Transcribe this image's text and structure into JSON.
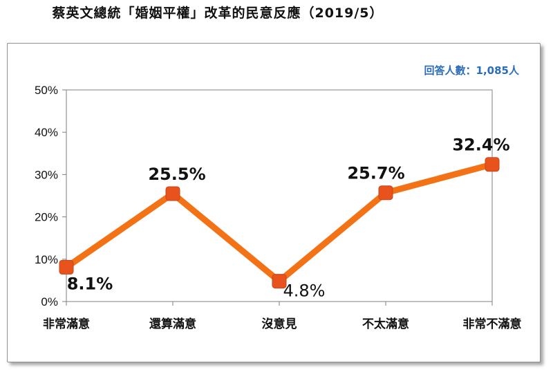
{
  "title": "蔡英文總統「婚姻平權」改革的民意反應（2019/5）",
  "sample_note": "回答人數：1,085人",
  "colors": {
    "line": "#f47216",
    "marker": "#e8521c",
    "grid": "#bfbfbf",
    "axis": "#7f7f7f"
  },
  "chart_data": {
    "type": "line",
    "title": "蔡英文總統「婚姻平權」改革的民意反應（2019/5）",
    "xlabel": "",
    "ylabel": "",
    "categories": [
      "非常滿意",
      "還算滿意",
      "沒意見",
      "不太滿意",
      "非常不滿意"
    ],
    "series": [
      {
        "values": [
          8.1,
          25.5,
          4.8,
          25.7,
          32.4
        ]
      }
    ],
    "data_labels": [
      "8.1%",
      "25.5%",
      "4.8%",
      "25.7%",
      "32.4%"
    ],
    "yticks": [
      "0%",
      "10%",
      "20%",
      "30%",
      "40%",
      "50%"
    ],
    "ylim": [
      0,
      50
    ],
    "grid": false,
    "legend": "none"
  }
}
